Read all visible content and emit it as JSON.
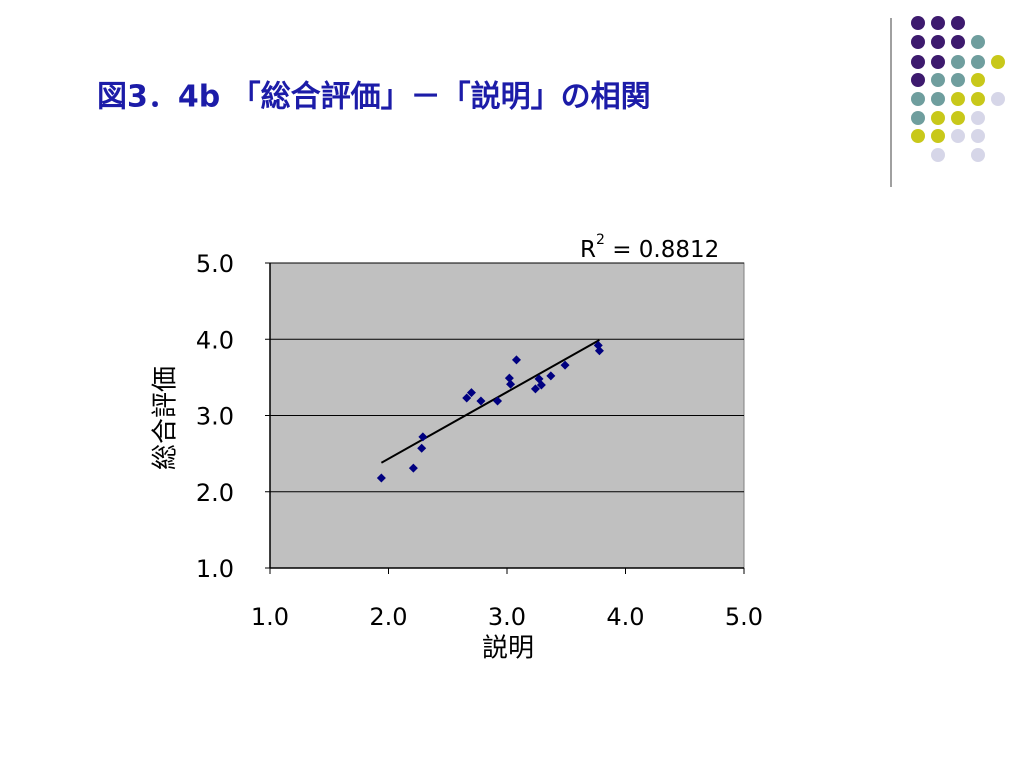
{
  "chart_data": {
    "type": "scatter",
    "title": "図3．4b 「総合評価」－「説明」の相関",
    "x_label": "説明",
    "y_label": "総合評価",
    "annotation": [
      "R",
      "2",
      " = 0.8812"
    ],
    "color": "#000080",
    "plot_background": "#c0c0c0",
    "grid": true,
    "x": [
      1.94,
      2.21,
      2.28,
      2.29,
      2.66,
      2.7,
      2.78,
      2.92,
      3.02,
      3.03,
      3.08,
      3.24,
      3.27,
      3.29,
      3.37,
      3.49,
      3.77,
      3.78
    ],
    "values": [
      2.18,
      2.31,
      2.57,
      2.72,
      3.23,
      3.3,
      3.19,
      3.19,
      3.49,
      3.41,
      3.73,
      3.35,
      3.48,
      3.4,
      3.52,
      3.66,
      3.92,
      3.85
    ],
    "trendline": {
      "x": [
        1.94,
        3.78
      ],
      "y": [
        2.38,
        3.99
      ]
    },
    "xlim": [
      1,
      5
    ],
    "ylim": [
      1,
      5
    ],
    "xticks": [
      {
        "value": 1,
        "label": "1.0"
      },
      {
        "value": 2,
        "label": "2.0"
      },
      {
        "value": 3,
        "label": "3.0"
      },
      {
        "value": 4,
        "label": "4.0"
      },
      {
        "value": 5,
        "label": "5.0"
      }
    ],
    "yticks": [
      {
        "value": 1,
        "label": "1.0"
      },
      {
        "value": 2,
        "label": "2.0"
      },
      {
        "value": 3,
        "label": "3.0"
      },
      {
        "value": 4,
        "label": "4.0"
      },
      {
        "value": 5,
        "label": "5.0"
      }
    ]
  }
}
